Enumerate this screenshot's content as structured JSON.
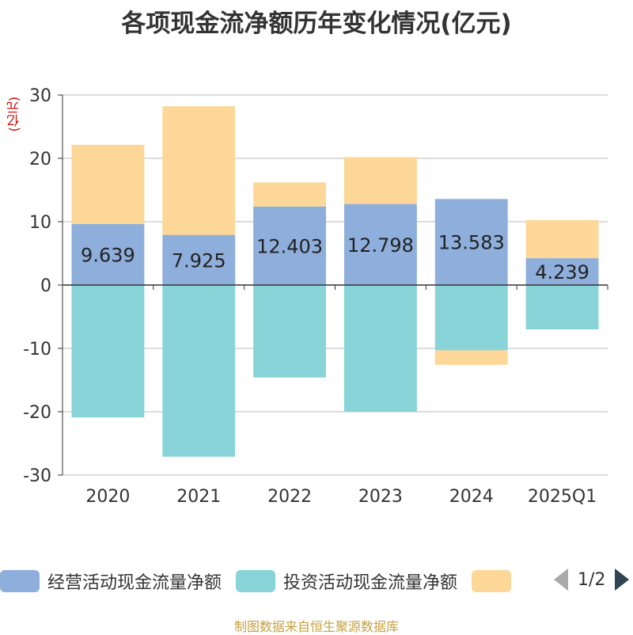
{
  "title": "各项现金流净额历年变化情况(亿元)",
  "unit_label": "(亿元)",
  "source": "制图数据来自恒生聚源数据库",
  "legend": {
    "items": [
      {
        "label": "经营活动现金流量净额",
        "color": "#8eaedb"
      },
      {
        "label": "投资活动现金流量净额",
        "color": "#88d4d8"
      },
      {
        "label": "",
        "color": "#fdd797"
      }
    ],
    "page": "1/2"
  },
  "chart_data": {
    "type": "bar",
    "stacked": true,
    "categories": [
      "2020",
      "2021",
      "2022",
      "2023",
      "2024",
      "2025Q1"
    ],
    "series": [
      {
        "name": "经营活动现金流量净额",
        "color": "#8eaedb",
        "values": [
          9.639,
          7.925,
          12.403,
          12.798,
          13.583,
          4.239
        ],
        "labels": [
          "9.639",
          "7.925",
          "12.403",
          "12.798",
          "13.583",
          "4.239"
        ]
      },
      {
        "name": "投资活动现金流量净额",
        "color": "#88d4d8",
        "values": [
          -20.9,
          -27.1,
          -14.6,
          -20.0,
          -10.3,
          -7.0
        ]
      },
      {
        "name": "",
        "color": "#fdd797",
        "values": [
          12.5,
          20.3,
          3.8,
          7.4,
          -2.3,
          6.0
        ]
      }
    ],
    "ylim": [
      -30,
      30
    ],
    "yticks": [
      -30,
      -20,
      -10,
      0,
      10,
      20,
      30
    ],
    "grid": true
  }
}
